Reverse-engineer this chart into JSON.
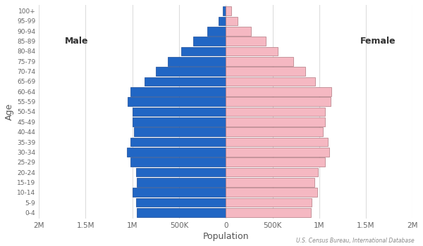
{
  "age_groups": [
    "0-4",
    "5-9",
    "10-14",
    "15-19",
    "20-24",
    "25-29",
    "30-34",
    "35-39",
    "40-44",
    "45-49",
    "50-54",
    "55-59",
    "60-64",
    "65-69",
    "70-74",
    "75-79",
    "80-84",
    "85-89",
    "90-94",
    "95-99",
    "100+"
  ],
  "male": [
    950000,
    960000,
    1000000,
    950000,
    960000,
    1020000,
    1060000,
    1020000,
    980000,
    1000000,
    1000000,
    1050000,
    1020000,
    870000,
    750000,
    620000,
    480000,
    350000,
    200000,
    80000,
    30000
  ],
  "female": [
    910000,
    920000,
    980000,
    950000,
    990000,
    1060000,
    1110000,
    1090000,
    1040000,
    1060000,
    1060000,
    1120000,
    1130000,
    960000,
    850000,
    720000,
    560000,
    430000,
    270000,
    130000,
    55000
  ],
  "male_color": "#2166c4",
  "female_color": "#f5b8c2",
  "male_edge_color": "#1a4a96",
  "female_edge_color": "#b07880",
  "background_color": "#ffffff",
  "xlabel": "Population",
  "ylabel": "Age",
  "xlim": 2000000,
  "male_label": "Male",
  "female_label": "Female",
  "source_text": "U.S. Census Bureau, International Database",
  "tick_positions": [
    -2000000,
    -1500000,
    -1000000,
    -500000,
    0,
    500000,
    1000000,
    1500000,
    2000000
  ],
  "tick_labels": [
    "2M",
    "1.5M",
    "1M",
    "500K",
    "0",
    "500K",
    "1M",
    "1.5M",
    "2M"
  ]
}
